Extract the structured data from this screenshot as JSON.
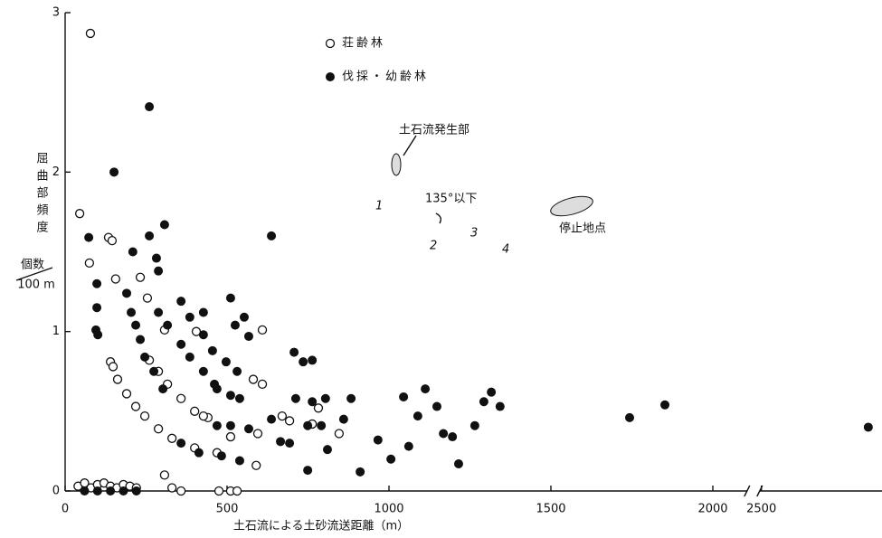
{
  "chart_data": {
    "type": "scatter",
    "y_label": "屈曲部頻度",
    "y_unit": {
      "numerator": "個数",
      "denominator": "100 m"
    },
    "x_label": "土石流による土砂流送距離（m）",
    "xlim": [
      0,
      2950
    ],
    "ylim": [
      0,
      3
    ],
    "xbreak": [
      2100,
      2450
    ],
    "xticks": [
      0,
      500,
      1000,
      1500,
      2000,
      2500
    ],
    "yticks": [
      0,
      1,
      2,
      3
    ],
    "annotations": {
      "source": "土石流発生部",
      "angle": "135°以下",
      "bends": [
        "1",
        "2",
        "3",
        "4"
      ],
      "stop": "停止地点"
    },
    "series": [
      {
        "name": "荘齢林",
        "color": "#111",
        "marker": "open",
        "x": [
          78,
          45,
          75,
          134,
          145,
          156,
          232,
          254,
          140,
          148,
          162,
          190,
          218,
          246,
          288,
          330,
          400,
          469,
          260,
          288,
          316,
          358,
          400,
          441,
          307,
          405,
          427,
          511,
          595,
          609,
          581,
          609,
          590,
          670,
          693,
          763,
          782,
          846,
          40,
          60,
          80,
          100,
          120,
          140,
          160,
          180,
          200,
          220,
          307,
          330,
          358,
          475,
          511,
          531
        ],
        "values": [
          2.87,
          1.74,
          1.43,
          1.59,
          1.57,
          1.33,
          1.34,
          1.21,
          0.81,
          0.78,
          0.7,
          0.61,
          0.53,
          0.47,
          0.39,
          0.33,
          0.27,
          0.24,
          0.82,
          0.75,
          0.67,
          0.58,
          0.5,
          0.46,
          1.01,
          1.0,
          0.47,
          0.34,
          0.36,
          1.01,
          0.7,
          0.67,
          0.16,
          0.47,
          0.44,
          0.42,
          0.52,
          0.36,
          0.03,
          0.05,
          0.02,
          0.04,
          0.05,
          0.03,
          0.02,
          0.04,
          0.03,
          0.02,
          0.1,
          0.02,
          0,
          0,
          0,
          0
        ]
      },
      {
        "name": "伐採・幼齢林",
        "color": "#111",
        "marker": "filled",
        "x": [
          260,
          151,
          637,
          73,
          307,
          260,
          209,
          282,
          288,
          98,
          98,
          95,
          101,
          190,
          204,
          218,
          232,
          246,
          274,
          302,
          288,
          316,
          358,
          385,
          427,
          461,
          358,
          385,
          427,
          455,
          497,
          531,
          427,
          511,
          525,
          553,
          567,
          469,
          511,
          539,
          469,
          511,
          567,
          358,
          413,
          483,
          539,
          637,
          665,
          693,
          707,
          735,
          763,
          749,
          791,
          712,
          763,
          804,
          749,
          810,
          860,
          883,
          911,
          966,
          1006,
          1045,
          1061,
          1089,
          1112,
          1148,
          1168,
          1196,
          1215,
          1265,
          1293,
          1316,
          1343,
          1743,
          1852,
          2830,
          60,
          100,
          140,
          180,
          220
        ],
        "values": [
          2.41,
          2.0,
          1.6,
          1.59,
          1.67,
          1.6,
          1.5,
          1.46,
          1.38,
          1.3,
          1.15,
          1.01,
          0.98,
          1.24,
          1.12,
          1.04,
          0.95,
          0.84,
          0.75,
          0.64,
          1.12,
          1.04,
          0.92,
          0.84,
          0.75,
          0.67,
          1.19,
          1.09,
          0.98,
          0.88,
          0.81,
          0.75,
          1.12,
          1.21,
          1.04,
          1.09,
          0.97,
          0.64,
          0.6,
          0.58,
          0.41,
          0.41,
          0.39,
          0.3,
          0.24,
          0.22,
          0.19,
          0.45,
          0.31,
          0.3,
          0.87,
          0.81,
          0.82,
          0.41,
          0.41,
          0.58,
          0.56,
          0.58,
          0.13,
          0.26,
          0.45,
          0.58,
          0.12,
          0.32,
          0.2,
          0.59,
          0.28,
          0.47,
          0.64,
          0.53,
          0.36,
          0.34,
          0.17,
          0.41,
          0.56,
          0.62,
          0.53,
          0.46,
          0.54,
          0.4,
          0,
          0,
          0,
          0,
          0
        ]
      }
    ]
  }
}
